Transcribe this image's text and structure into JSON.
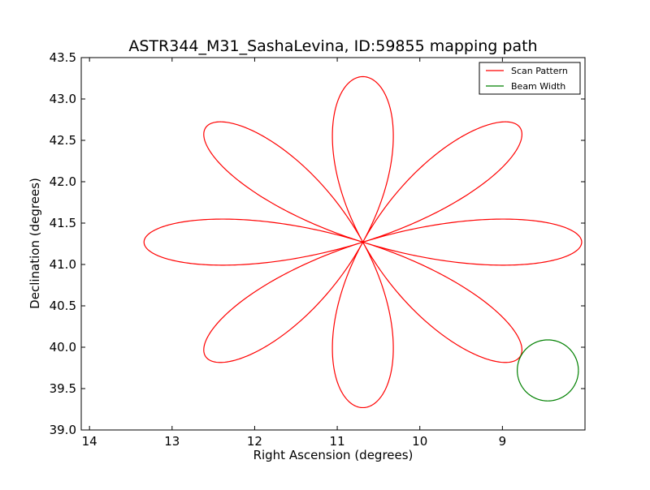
{
  "chart_data": {
    "type": "line",
    "title": "ASTR344_M31_SashaLevina, ID:59855 mapping path",
    "xlabel": "Right Ascension (degrees)",
    "ylabel": "Declination (degrees)",
    "xlim": [
      14.1,
      8.0
    ],
    "ylim": [
      39.0,
      43.5
    ],
    "x_inverted": true,
    "xticks": [
      14,
      13,
      12,
      11,
      10,
      9
    ],
    "yticks": [
      39.0,
      39.5,
      40.0,
      40.5,
      41.0,
      41.5,
      42.0,
      42.5,
      43.0,
      43.5
    ],
    "xtick_labels": [
      "14",
      "13",
      "12",
      "11",
      "10",
      "9"
    ],
    "ytick_labels": [
      "39.0",
      "39.5",
      "40.0",
      "40.5",
      "41.0",
      "41.5",
      "42.0",
      "42.5",
      "43.0",
      "43.5"
    ],
    "grid": false,
    "legend": {
      "position": "top-right"
    },
    "series": [
      {
        "name": "Scan Pattern",
        "color": "#ff0000",
        "shape": "rose",
        "center": [
          10.69,
          41.27
        ],
        "ra_extent": 2.65,
        "dec_extent": 2.0,
        "petals": 8
      },
      {
        "name": "Beam Width",
        "color": "#008000",
        "shape": "circle",
        "center": [
          8.45,
          39.72
        ],
        "radius": 0.37
      }
    ]
  }
}
